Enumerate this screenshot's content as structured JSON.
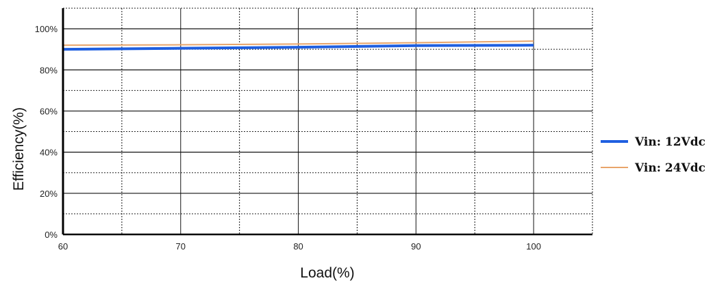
{
  "chart_data": {
    "type": "line",
    "title": "",
    "xlabel": "Load(%)",
    "ylabel": "Efficiency(%)",
    "xlim": [
      60,
      105
    ],
    "ylim": [
      0,
      110
    ],
    "x_ticks": [
      60,
      70,
      80,
      90,
      100
    ],
    "x_tick_labels": [
      "60",
      "70",
      "80",
      "90",
      "100"
    ],
    "y_ticks": [
      0,
      20,
      40,
      60,
      80,
      100
    ],
    "y_tick_labels": [
      "0%",
      "20%",
      "40%",
      "60%",
      "80%",
      "100%"
    ],
    "grid": true,
    "legend_position": "right",
    "series": [
      {
        "name": "Vin: 12Vdc",
        "color": "#1f5fe0",
        "x": [
          60,
          70,
          80,
          90,
          100
        ],
        "values": [
          90,
          90.5,
          91,
          91.8,
          92
        ]
      },
      {
        "name": "Vin: 24Vdc",
        "color": "#e8a46a",
        "x": [
          60,
          70,
          80,
          90,
          100
        ],
        "values": [
          92,
          92.2,
          92.6,
          93.2,
          94
        ]
      }
    ]
  }
}
